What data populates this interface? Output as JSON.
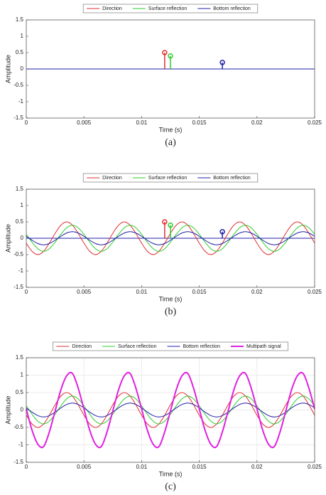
{
  "chart_data": [
    {
      "type": "stem",
      "caption": "(a)",
      "xlabel": "Time (s)",
      "ylabel": "Amplitude",
      "xlim": [
        0,
        0.025
      ],
      "xticks": [
        0,
        0.005,
        0.01,
        0.015,
        0.02,
        0.025
      ],
      "ylim": [
        -1.5,
        1.5
      ],
      "yticks": [
        -1.5,
        -1,
        -0.5,
        0,
        0.5,
        1,
        1.5
      ],
      "grid": false,
      "series": [
        {
          "name": "Direction",
          "color": "#e03030",
          "x": [
            0.012
          ],
          "values": [
            0.5
          ]
        },
        {
          "name": "Surface reflection",
          "color": "#2ecc2e",
          "x": [
            0.0125
          ],
          "values": [
            0.4
          ]
        },
        {
          "name": "Bottom reflection",
          "color": "#2020a8",
          "x": [
            0.017
          ],
          "values": [
            0.2
          ]
        }
      ]
    },
    {
      "type": "line",
      "caption": "(b)",
      "xlabel": "Time (s)",
      "ylabel": "Amplitude",
      "xlim": [
        0,
        0.025
      ],
      "xticks": [
        0,
        0.005,
        0.01,
        0.015,
        0.02,
        0.025
      ],
      "ylim": [
        -1.5,
        1.5
      ],
      "yticks": [
        -1.5,
        -1,
        -0.5,
        0,
        0.5,
        1,
        1.5
      ],
      "grid": false,
      "x": [
        0,
        0.0005,
        0.001,
        0.0015,
        0.002,
        0.0025,
        0.003,
        0.0035,
        0.004,
        0.0045,
        0.005,
        0.0055,
        0.006,
        0.0065,
        0.007,
        0.0075,
        0.008,
        0.0085,
        0.009,
        0.0095,
        0.01,
        0.0105,
        0.011,
        0.0115,
        0.012,
        0.0125,
        0.013,
        0.0135,
        0.014,
        0.0145,
        0.015,
        0.0155,
        0.016,
        0.0165,
        0.017,
        0.0175,
        0.018,
        0.0185,
        0.019,
        0.0195,
        0.02,
        0.0205,
        0.021,
        0.0215,
        0.022,
        0.0225,
        0.023,
        0.0235,
        0.024,
        0.0245,
        0.025
      ],
      "series": [
        {
          "name": "Direction",
          "color": "#e03030",
          "values": [
            -0.15,
            -0.4,
            -0.5,
            -0.4,
            -0.15,
            0.15,
            0.4,
            0.5,
            0.4,
            0.15,
            -0.15,
            -0.4,
            -0.5,
            -0.4,
            -0.15,
            0.15,
            0.4,
            0.5,
            0.4,
            0.15,
            -0.15,
            -0.4,
            -0.5,
            -0.4,
            -0.15,
            0.15,
            0.4,
            0.5,
            0.4,
            0.15,
            -0.15,
            -0.4,
            -0.5,
            -0.4,
            -0.15,
            0.15,
            0.4,
            0.5,
            0.4,
            0.15,
            -0.15,
            -0.4,
            -0.5,
            -0.4,
            -0.15,
            0.15,
            0.4,
            0.5,
            0.4,
            0.15,
            -0.15
          ]
        },
        {
          "name": "Surface reflection",
          "color": "#2ecc2e",
          "values": [
            0.12,
            -0.12,
            -0.32,
            -0.4,
            -0.32,
            -0.12,
            0.12,
            0.32,
            0.4,
            0.32,
            0.12,
            -0.12,
            -0.32,
            -0.4,
            -0.32,
            -0.12,
            0.12,
            0.32,
            0.4,
            0.32,
            0.12,
            -0.12,
            -0.32,
            -0.4,
            -0.32,
            -0.12,
            0.12,
            0.32,
            0.4,
            0.32,
            0.12,
            -0.12,
            -0.32,
            -0.4,
            -0.32,
            -0.12,
            0.12,
            0.32,
            0.4,
            0.32,
            0.12,
            -0.12,
            -0.32,
            -0.4,
            -0.32,
            -0.12,
            0.12,
            0.32,
            0.4,
            0.32,
            0.12
          ]
        },
        {
          "name": "Bottom reflection",
          "color": "#2020a8",
          "values": [
            0.06,
            -0.06,
            -0.16,
            -0.2,
            -0.16,
            -0.06,
            0.06,
            0.16,
            0.2,
            0.16,
            0.06,
            -0.06,
            -0.16,
            -0.2,
            -0.16,
            -0.06,
            0.06,
            0.16,
            0.2,
            0.16,
            0.06,
            -0.06,
            -0.16,
            -0.2,
            -0.16,
            -0.06,
            0.06,
            0.16,
            0.2,
            0.16,
            0.06,
            -0.06,
            -0.16,
            -0.2,
            -0.16,
            -0.06,
            0.06,
            0.16,
            0.2,
            0.16,
            0.06,
            -0.06,
            -0.16,
            -0.2,
            -0.16,
            -0.06,
            0.06,
            0.16,
            0.2,
            0.16,
            0.06
          ]
        }
      ],
      "stems": [
        {
          "color": "#e03030",
          "x": 0.012,
          "value": 0.5
        },
        {
          "color": "#2ecc2e",
          "x": 0.0125,
          "value": 0.4
        },
        {
          "color": "#2020a8",
          "x": 0.017,
          "value": 0.2
        }
      ]
    },
    {
      "type": "line",
      "caption": "(c)",
      "xlabel": "Time (s)",
      "ylabel": "Amplitude",
      "xlim": [
        0,
        0.025
      ],
      "xticks": [
        0,
        0.005,
        0.01,
        0.015,
        0.02,
        0.025
      ],
      "ylim": [
        -1.5,
        1.5
      ],
      "yticks": [
        -1.5,
        -1,
        -0.5,
        0,
        0.5,
        1,
        1.5
      ],
      "grid": true,
      "x": [
        0,
        0.0005,
        0.001,
        0.0015,
        0.002,
        0.0025,
        0.003,
        0.0035,
        0.004,
        0.0045,
        0.005,
        0.0055,
        0.006,
        0.0065,
        0.007,
        0.0075,
        0.008,
        0.0085,
        0.009,
        0.0095,
        0.01,
        0.0105,
        0.011,
        0.0115,
        0.012,
        0.0125,
        0.013,
        0.0135,
        0.014,
        0.0145,
        0.015,
        0.0155,
        0.016,
        0.0165,
        0.017,
        0.0175,
        0.018,
        0.0185,
        0.019,
        0.0195,
        0.02,
        0.0205,
        0.021,
        0.0215,
        0.022,
        0.0225,
        0.023,
        0.0235,
        0.024,
        0.0245,
        0.025
      ],
      "series": [
        {
          "name": "Direction",
          "color": "#e03030",
          "values": [
            -0.15,
            -0.4,
            -0.5,
            -0.4,
            -0.15,
            0.15,
            0.4,
            0.5,
            0.4,
            0.15,
            -0.15,
            -0.4,
            -0.5,
            -0.4,
            -0.15,
            0.15,
            0.4,
            0.5,
            0.4,
            0.15,
            -0.15,
            -0.4,
            -0.5,
            -0.4,
            -0.15,
            0.15,
            0.4,
            0.5,
            0.4,
            0.15,
            -0.15,
            -0.4,
            -0.5,
            -0.4,
            -0.15,
            0.15,
            0.4,
            0.5,
            0.4,
            0.15,
            -0.15,
            -0.4,
            -0.5,
            -0.4,
            -0.15,
            0.15,
            0.4,
            0.5,
            0.4,
            0.15,
            -0.15
          ]
        },
        {
          "name": "Surface reflection",
          "color": "#2ecc2e",
          "values": [
            0.12,
            -0.12,
            -0.32,
            -0.4,
            -0.32,
            -0.12,
            0.12,
            0.32,
            0.4,
            0.32,
            0.12,
            -0.12,
            -0.32,
            -0.4,
            -0.32,
            -0.12,
            0.12,
            0.32,
            0.4,
            0.32,
            0.12,
            -0.12,
            -0.32,
            -0.4,
            -0.32,
            -0.12,
            0.12,
            0.32,
            0.4,
            0.32,
            0.12,
            -0.12,
            -0.32,
            -0.4,
            -0.32,
            -0.12,
            0.12,
            0.32,
            0.4,
            0.32,
            0.12,
            -0.12,
            -0.32,
            -0.4,
            -0.32,
            -0.12,
            0.12,
            0.32,
            0.4,
            0.32,
            0.12
          ]
        },
        {
          "name": "Bottom reflection",
          "color": "#2020a8",
          "values": [
            0.06,
            -0.06,
            -0.16,
            -0.2,
            -0.16,
            -0.06,
            0.06,
            0.16,
            0.2,
            0.16,
            0.06,
            -0.06,
            -0.16,
            -0.2,
            -0.16,
            -0.06,
            0.06,
            0.16,
            0.2,
            0.16,
            0.06,
            -0.06,
            -0.16,
            -0.2,
            -0.16,
            -0.06,
            0.06,
            0.16,
            0.2,
            0.16,
            0.06,
            -0.06,
            -0.16,
            -0.2,
            -0.16,
            -0.06,
            0.06,
            0.16,
            0.2,
            0.16,
            0.06,
            -0.06,
            -0.16,
            -0.2,
            -0.16,
            -0.06,
            0.06,
            0.16,
            0.2,
            0.16,
            0.06
          ]
        },
        {
          "name": "Multipath signal",
          "color": "#e020e0",
          "line_width": 2,
          "values": [
            0.03,
            -0.58,
            -0.98,
            -1.05,
            -0.63,
            -0.03,
            0.58,
            0.98,
            1.05,
            0.63,
            0.03,
            -0.58,
            -0.98,
            -1.05,
            -0.63,
            -0.03,
            0.58,
            0.98,
            1.05,
            0.63,
            0.03,
            -0.58,
            -0.98,
            -1.05,
            -0.63,
            -0.03,
            0.58,
            0.98,
            1.05,
            0.63,
            0.03,
            -0.58,
            -0.98,
            -1.05,
            -0.63,
            -0.03,
            0.58,
            0.98,
            1.05,
            0.63,
            0.03,
            -0.58,
            -0.98,
            -1.05,
            -0.63,
            -0.03,
            0.58,
            0.98,
            1.05,
            0.63,
            0.03
          ]
        }
      ]
    }
  ]
}
